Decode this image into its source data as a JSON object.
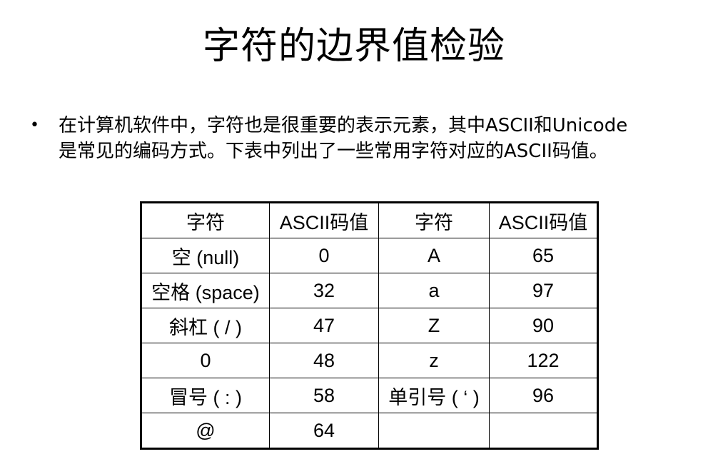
{
  "title": "字符的边界值检验",
  "bullet": {
    "marker": "•",
    "line1": "在计算机软件中，字符也是很重要的表示元素，其中ASCII和Unicode",
    "line2": "是常见的编码方式。下表中列出了一些常用字符对应的ASCII码值。"
  },
  "table": {
    "headers": [
      "字符",
      "ASCII码值",
      "字符",
      "ASCII码值"
    ],
    "rows": [
      [
        "空 (null)",
        "0",
        "A",
        "65"
      ],
      [
        "空格 (space)",
        "32",
        "a",
        "97"
      ],
      [
        "斜杠 ( / )",
        "47",
        "Z",
        "90"
      ],
      [
        "0",
        "48",
        "z",
        "122"
      ],
      [
        "冒号 ( : )",
        "58",
        "单引号 ( ‘ )",
        "96"
      ],
      [
        "@",
        "64",
        "",
        ""
      ]
    ]
  }
}
